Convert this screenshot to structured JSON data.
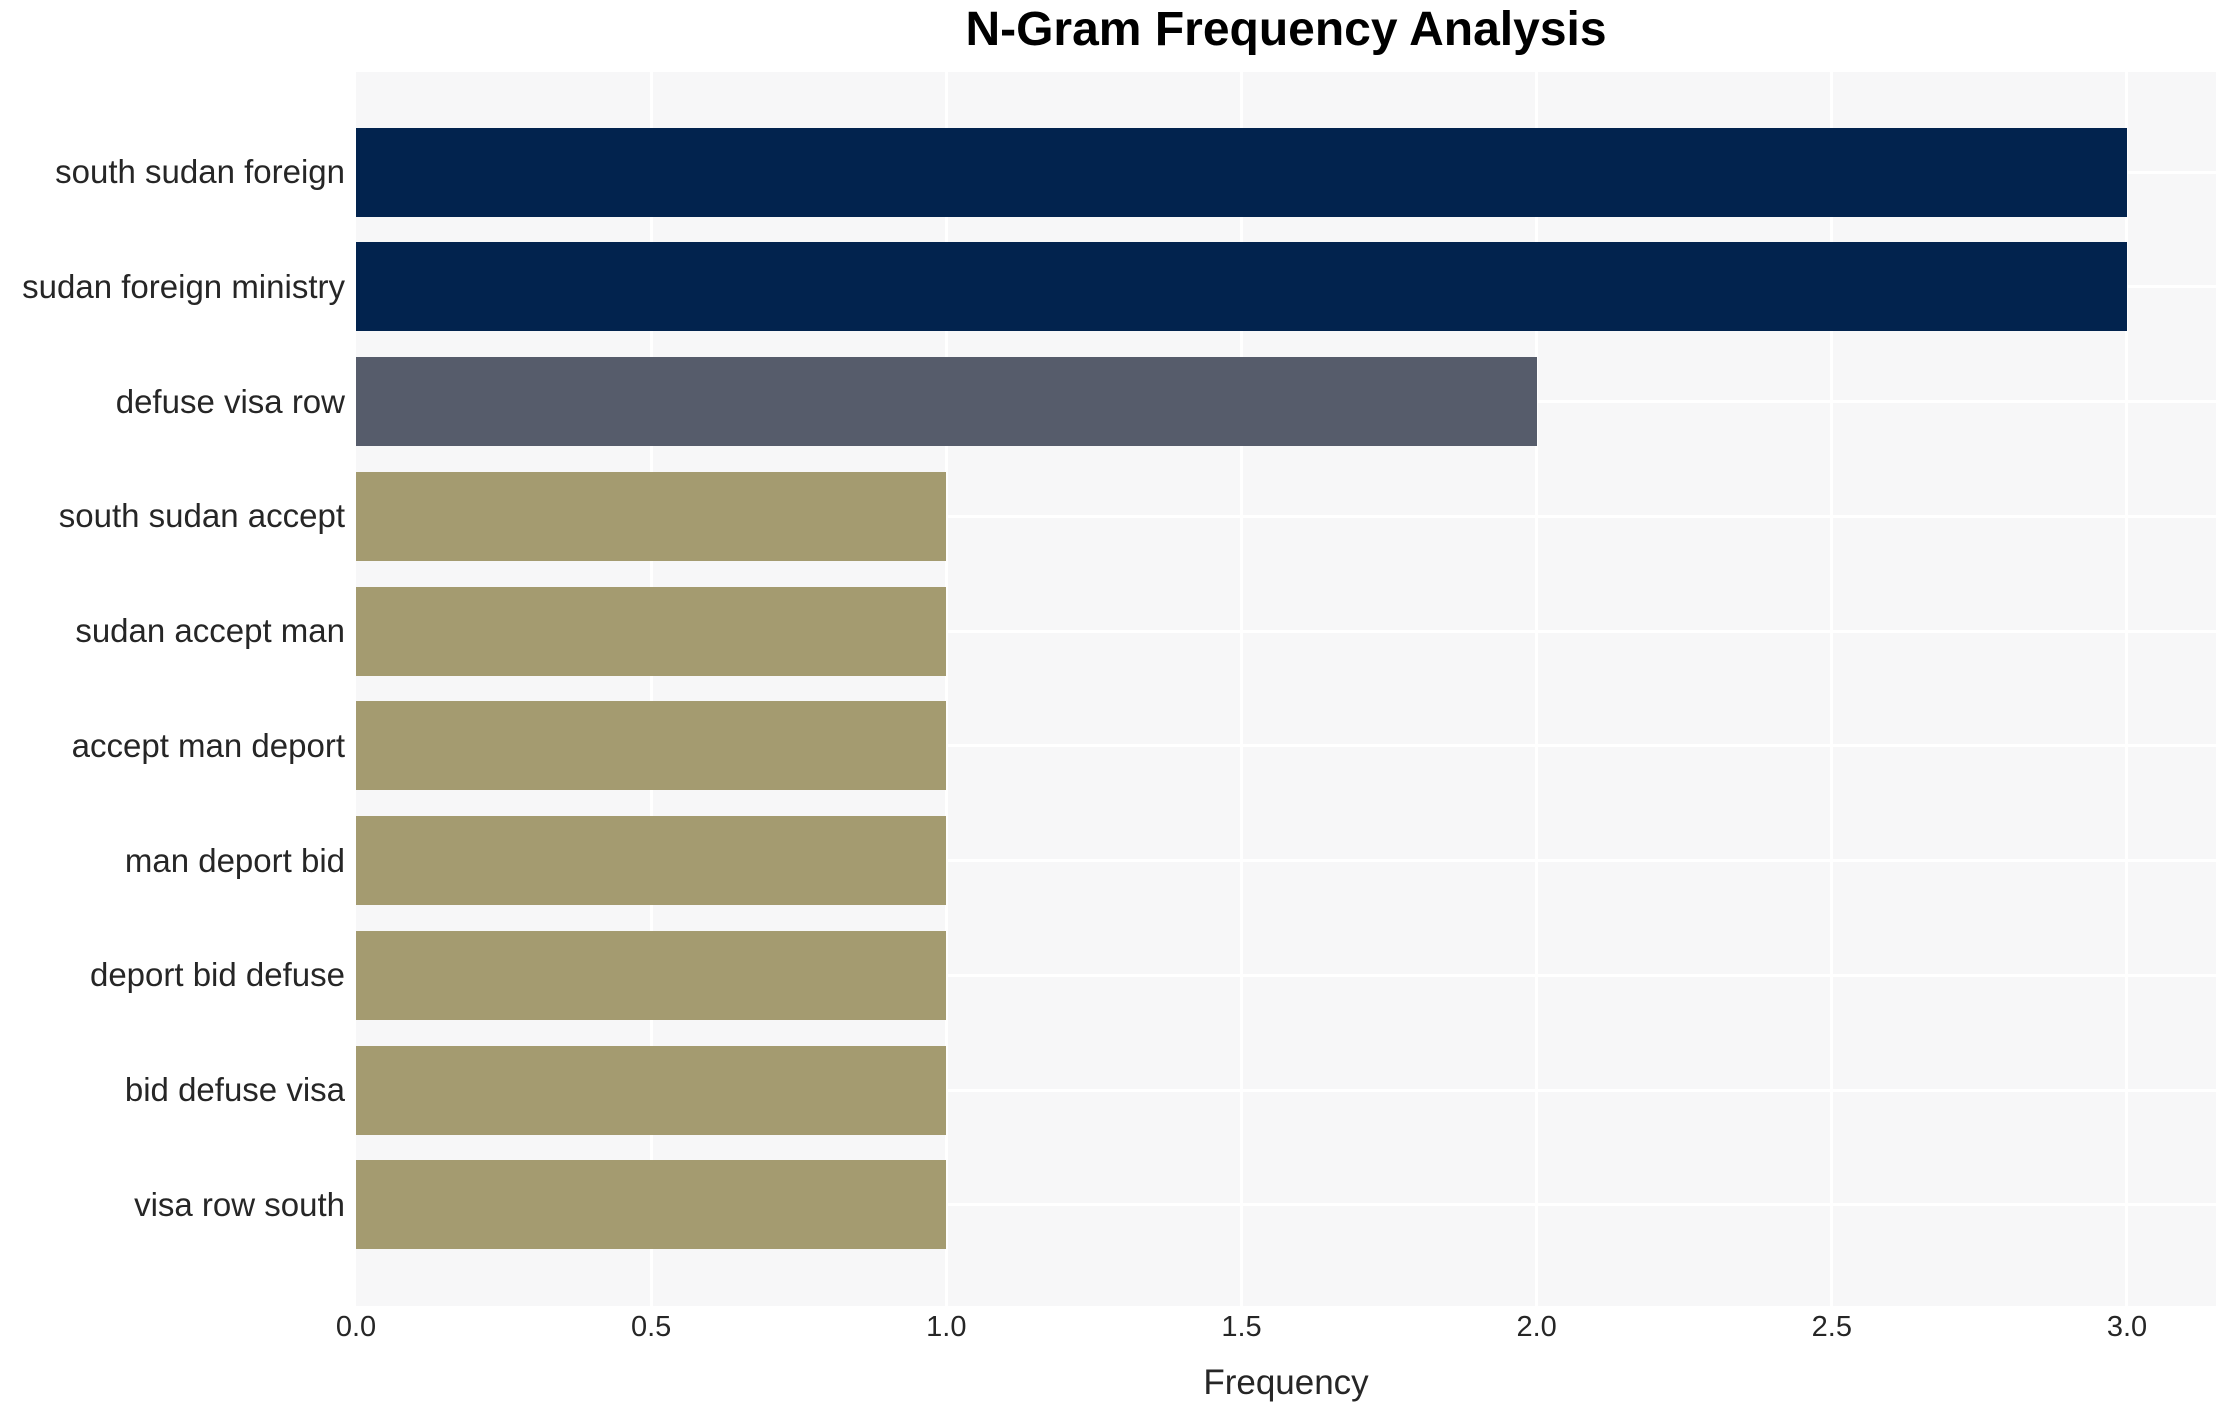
{
  "chart_data": {
    "type": "bar",
    "orientation": "horizontal",
    "title": "N-Gram Frequency Analysis",
    "xlabel": "Frequency",
    "ylabel": "",
    "categories": [
      "south sudan foreign",
      "sudan foreign ministry",
      "defuse visa row",
      "south sudan accept",
      "sudan accept man",
      "accept man deport",
      "man deport bid",
      "deport bid defuse",
      "bid defuse visa",
      "visa row south"
    ],
    "values": [
      3,
      3,
      2,
      1,
      1,
      1,
      1,
      1,
      1,
      1
    ],
    "bar_colors": [
      "#02234e",
      "#02234e",
      "#565c6b",
      "#a49b70",
      "#a49b70",
      "#a49b70",
      "#a49b70",
      "#a49b70",
      "#a49b70",
      "#a49b70"
    ],
    "x_ticks": [
      0,
      0.5,
      1,
      1.5,
      2,
      2.5,
      3
    ],
    "x_tick_labels": [
      "0.0",
      "0.5",
      "1.0",
      "1.5",
      "2.0",
      "2.5",
      "3.0"
    ],
    "xlim": [
      0,
      3.15
    ],
    "grid": true,
    "legend": false,
    "colors": {
      "plot_background": "#f7f7f8",
      "grid": "#ffffff",
      "title_text": "#000000",
      "tick_text": "#262626"
    }
  }
}
